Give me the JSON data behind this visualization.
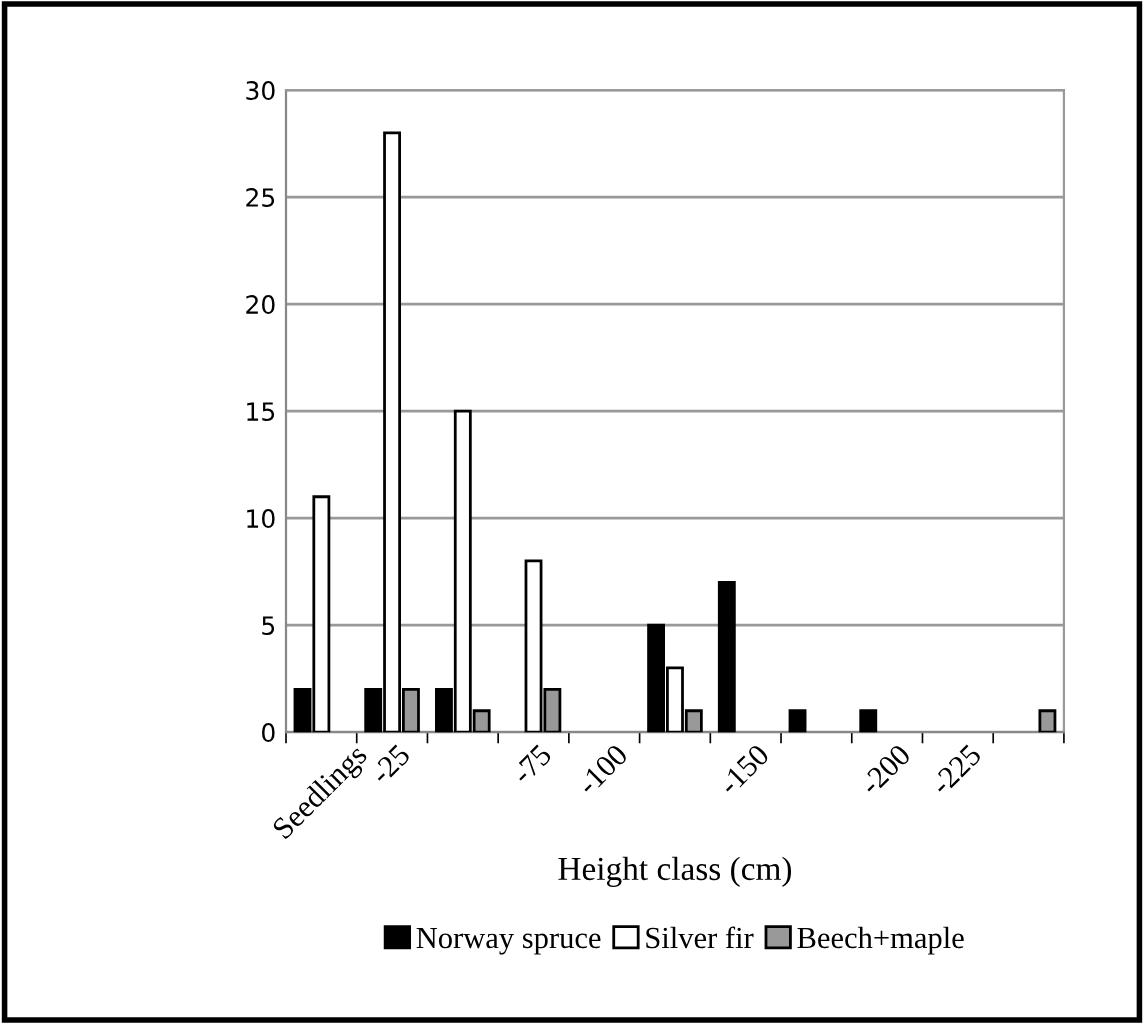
{
  "chart_data": {
    "type": "bar",
    "xlabel": "Height class (cm)",
    "categories": [
      "Seedlings",
      "-25",
      null,
      "-75",
      "-100",
      null,
      "-150",
      null,
      "-200",
      "-225",
      null
    ],
    "series": [
      {
        "name": "Norway spruce",
        "color": "#000000",
        "values": [
          2,
          2,
          2,
          null,
          null,
          5,
          7,
          1,
          1,
          null,
          null
        ]
      },
      {
        "name": "Silver fir",
        "color": "#ffffff",
        "values": [
          11,
          28,
          15,
          8,
          null,
          3,
          null,
          null,
          null,
          null,
          null
        ]
      },
      {
        "name": "Beech+maple",
        "color": "#999999",
        "values": [
          null,
          2,
          1,
          2,
          null,
          1,
          null,
          null,
          null,
          null,
          1
        ]
      }
    ],
    "ylim": [
      0,
      30
    ],
    "yticks": [
      0,
      5,
      10,
      15,
      20,
      25,
      30
    ],
    "grid": "y",
    "legend": "bottom"
  }
}
